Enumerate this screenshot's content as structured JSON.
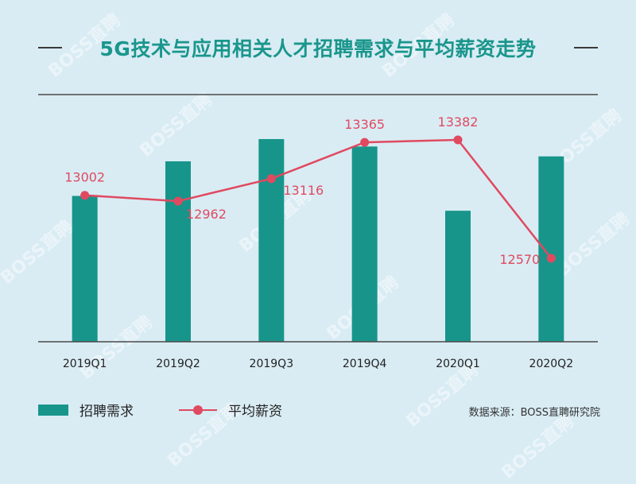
{
  "title": "5G技术与应用相关人才招聘需求与平均薪资走势",
  "watermark": "BOSS直聘",
  "legend": {
    "bars": "招聘需求",
    "line": "平均薪资"
  },
  "source": "数据来源：BOSS直聘研究院",
  "colors": {
    "bar": "#18958a",
    "line": "#e04a60",
    "title": "#1a968c",
    "background": "#d9ecf4"
  },
  "chart_data": {
    "type": "bar+line",
    "categories": [
      "2019Q1",
      "2019Q2",
      "2019Q3",
      "2019Q4",
      "2020Q1",
      "2020Q2"
    ],
    "series": [
      {
        "name": "招聘需求",
        "type": "bar",
        "values": [
          0.59,
          0.73,
          0.82,
          0.79,
          0.53,
          0.75
        ]
      },
      {
        "name": "平均薪资",
        "type": "line",
        "values": [
          13002,
          12962,
          13116,
          13365,
          13382,
          12570
        ]
      }
    ],
    "line_labels": [
      "13002",
      "12962",
      "13116",
      "13365",
      "13382",
      "12570"
    ]
  }
}
